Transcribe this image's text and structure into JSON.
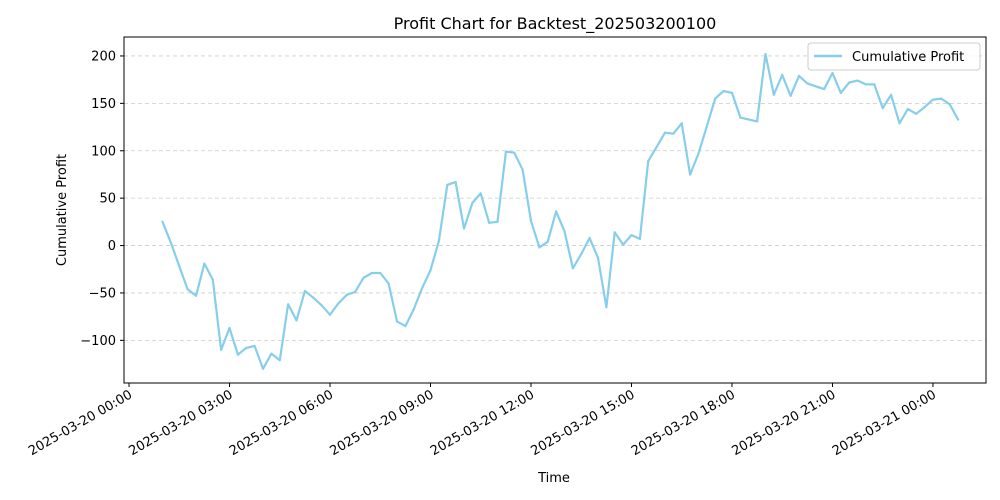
{
  "chart_data": {
    "type": "line",
    "title": "Profit Chart for Backtest_202503200100",
    "xlabel": "Time",
    "ylabel": "Cumulative Profit",
    "xlim": [
      "2025-03-19 23:51",
      "2025-03-21 01:35"
    ],
    "ylim": [
      -145,
      220
    ],
    "grid": {
      "y": true,
      "x": false,
      "style": "dashed"
    },
    "legend_position": "top-right",
    "x_ticks": [
      "2025-03-20 00:00",
      "2025-03-20 03:00",
      "2025-03-20 06:00",
      "2025-03-20 09:00",
      "2025-03-20 12:00",
      "2025-03-20 15:00",
      "2025-03-20 18:00",
      "2025-03-20 21:00",
      "2025-03-21 00:00"
    ],
    "y_ticks": [
      "−100",
      "−50",
      "0",
      "50",
      "100",
      "150",
      "200"
    ],
    "series": [
      {
        "name": "Cumulative Profit",
        "color": "#87CEEB",
        "x": [
          "2025-03-20 01:00",
          "2025-03-20 01:15",
          "2025-03-20 01:30",
          "2025-03-20 01:45",
          "2025-03-20 02:00",
          "2025-03-20 02:15",
          "2025-03-20 02:30",
          "2025-03-20 02:45",
          "2025-03-20 03:00",
          "2025-03-20 03:15",
          "2025-03-20 03:30",
          "2025-03-20 03:45",
          "2025-03-20 04:00",
          "2025-03-20 04:15",
          "2025-03-20 04:30",
          "2025-03-20 04:45",
          "2025-03-20 05:00",
          "2025-03-20 05:15",
          "2025-03-20 05:30",
          "2025-03-20 05:45",
          "2025-03-20 06:00",
          "2025-03-20 06:15",
          "2025-03-20 06:30",
          "2025-03-20 06:45",
          "2025-03-20 07:00",
          "2025-03-20 07:15",
          "2025-03-20 07:30",
          "2025-03-20 07:45",
          "2025-03-20 08:00",
          "2025-03-20 08:15",
          "2025-03-20 08:30",
          "2025-03-20 08:45",
          "2025-03-20 09:00",
          "2025-03-20 09:15",
          "2025-03-20 09:30",
          "2025-03-20 09:45",
          "2025-03-20 10:00",
          "2025-03-20 10:15",
          "2025-03-20 10:30",
          "2025-03-20 10:45",
          "2025-03-20 11:00",
          "2025-03-20 11:15",
          "2025-03-20 11:30",
          "2025-03-20 11:45",
          "2025-03-20 12:00",
          "2025-03-20 12:15",
          "2025-03-20 12:30",
          "2025-03-20 12:45",
          "2025-03-20 13:00",
          "2025-03-20 13:15",
          "2025-03-20 13:30",
          "2025-03-20 13:45",
          "2025-03-20 14:00",
          "2025-03-20 14:15",
          "2025-03-20 14:30",
          "2025-03-20 14:45",
          "2025-03-20 15:00",
          "2025-03-20 15:15",
          "2025-03-20 15:30",
          "2025-03-20 15:45",
          "2025-03-20 16:00",
          "2025-03-20 16:15",
          "2025-03-20 16:30",
          "2025-03-20 16:45",
          "2025-03-20 17:00",
          "2025-03-20 17:15",
          "2025-03-20 17:30",
          "2025-03-20 17:45",
          "2025-03-20 18:00",
          "2025-03-20 18:15",
          "2025-03-20 18:30",
          "2025-03-20 18:45",
          "2025-03-20 19:00",
          "2025-03-20 19:15",
          "2025-03-20 19:30",
          "2025-03-20 19:45",
          "2025-03-20 20:00",
          "2025-03-20 20:15",
          "2025-03-20 20:30",
          "2025-03-20 20:45",
          "2025-03-20 21:00",
          "2025-03-20 21:15",
          "2025-03-20 21:30",
          "2025-03-20 21:45",
          "2025-03-20 22:00",
          "2025-03-20 22:15",
          "2025-03-20 22:30",
          "2025-03-20 22:45",
          "2025-03-20 23:00",
          "2025-03-20 23:15",
          "2025-03-20 23:30",
          "2025-03-20 23:45",
          "2025-03-21 00:00",
          "2025-03-21 00:15",
          "2025-03-21 00:30",
          "2025-03-21 00:45"
        ],
        "y": [
          25,
          3,
          -22,
          -46,
          -53,
          -19,
          -36,
          -110,
          -87,
          -115,
          -108,
          -106,
          -130,
          -114,
          -121,
          -62,
          -79,
          -48,
          -55,
          -63,
          -73,
          -61,
          -52,
          -49,
          -34,
          -29,
          -29,
          -40,
          -80,
          -85,
          -67,
          -45,
          -26,
          5,
          64,
          67,
          18,
          45,
          55,
          24,
          25,
          99,
          98,
          80,
          26,
          -2,
          4,
          36,
          15,
          -24,
          -9,
          8,
          -13,
          -65,
          14,
          1,
          11,
          7,
          89,
          104,
          119,
          118,
          129,
          75,
          97,
          126,
          155,
          163,
          161,
          135,
          133,
          131,
          202,
          159,
          180,
          158,
          179,
          171,
          168,
          165,
          182,
          161,
          172,
          174,
          170,
          170,
          145,
          159,
          129,
          144,
          139,
          146,
          154,
          155,
          149,
          133
        ]
      }
    ]
  }
}
